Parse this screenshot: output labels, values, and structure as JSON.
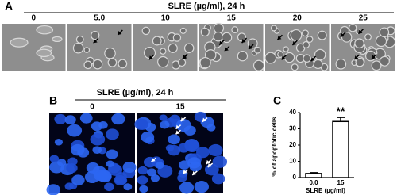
{
  "panel_a": {
    "label": "A",
    "title": "SLRE (µg/ml), 24 h",
    "columns": [
      "0",
      "5.0",
      "10",
      "15",
      "20",
      "25"
    ]
  },
  "panel_b": {
    "label": "B",
    "title": "SLRE (µg/ml), 24 h",
    "columns": [
      "0",
      "15"
    ]
  },
  "chart_data": {
    "type": "bar",
    "panel_label": "C",
    "ylabel": "% of apoptotic cells",
    "xlabel": "SLRE (µg/ml)",
    "categories": [
      "0.0",
      "15"
    ],
    "values": [
      2.5,
      34.5
    ],
    "errors": [
      0.5,
      2.5
    ],
    "annotation": "**",
    "color": "#ffffff",
    "ylim": [
      0,
      40
    ],
    "yticks": [
      0,
      10,
      20,
      30,
      40
    ]
  }
}
